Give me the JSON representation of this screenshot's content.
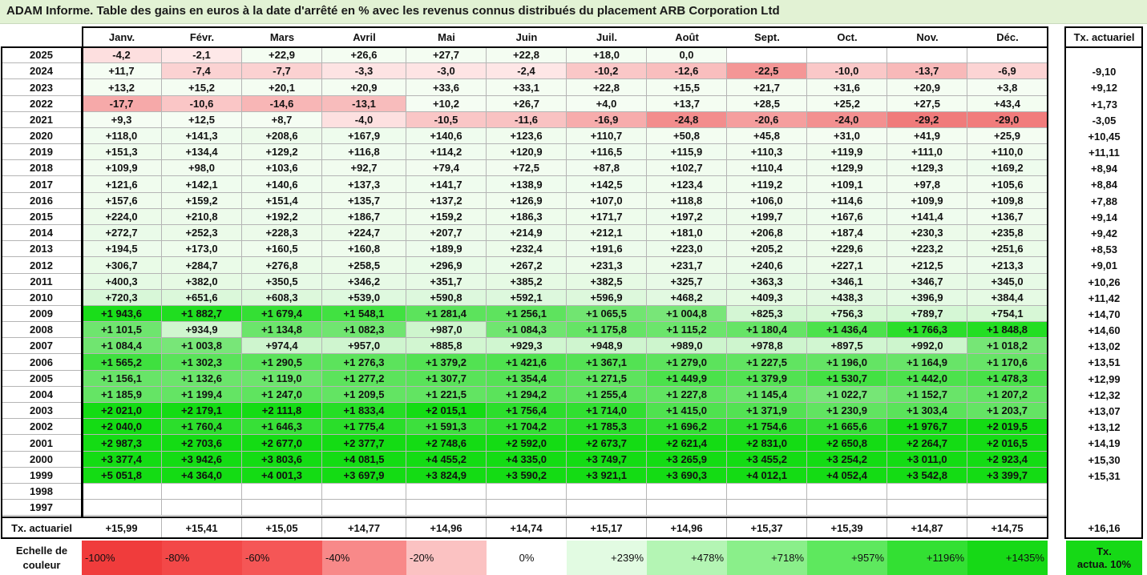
{
  "title": "ADAM Informe. Table des gains en euros à la date d'arrêté en % avec les revenus connus distribués du placement ARB Corporation Ltd",
  "months": [
    "Janv.",
    "Févr.",
    "Mars",
    "Avril",
    "Mai",
    "Juin",
    "Juil.",
    "Août",
    "Sept.",
    "Oct.",
    "Nov.",
    "Déc."
  ],
  "tx_header": "Tx. actuariel",
  "rows": [
    {
      "year": "2025",
      "values": [
        "-4,2",
        "-2,1",
        "+22,9",
        "+26,6",
        "+27,7",
        "+22,8",
        "+18,0",
        "0,0",
        "",
        "",
        "",
        ""
      ],
      "tx": ""
    },
    {
      "year": "2024",
      "values": [
        "+11,7",
        "-7,4",
        "-7,7",
        "-3,3",
        "-3,0",
        "-2,4",
        "-10,2",
        "-12,6",
        "-22,5",
        "-10,0",
        "-13,7",
        "-6,9"
      ],
      "tx": "-9,10"
    },
    {
      "year": "2023",
      "values": [
        "+13,2",
        "+15,2",
        "+20,1",
        "+20,9",
        "+33,6",
        "+33,1",
        "+22,8",
        "+15,5",
        "+21,7",
        "+31,6",
        "+20,9",
        "+3,8"
      ],
      "tx": "+9,12"
    },
    {
      "year": "2022",
      "values": [
        "-17,7",
        "-10,6",
        "-14,6",
        "-13,1",
        "+10,2",
        "+26,7",
        "+4,0",
        "+13,7",
        "+28,5",
        "+25,2",
        "+27,5",
        "+43,4"
      ],
      "tx": "+1,73"
    },
    {
      "year": "2021",
      "values": [
        "+9,3",
        "+12,5",
        "+8,7",
        "-4,0",
        "-10,5",
        "-11,6",
        "-16,9",
        "-24,8",
        "-20,6",
        "-24,0",
        "-29,2",
        "-29,0"
      ],
      "tx": "-3,05"
    },
    {
      "year": "2020",
      "values": [
        "+118,0",
        "+141,3",
        "+208,6",
        "+167,9",
        "+140,6",
        "+123,6",
        "+110,7",
        "+50,8",
        "+45,8",
        "+31,0",
        "+41,9",
        "+25,9"
      ],
      "tx": "+10,45"
    },
    {
      "year": "2019",
      "values": [
        "+151,3",
        "+134,4",
        "+129,2",
        "+116,8",
        "+114,2",
        "+120,9",
        "+116,5",
        "+115,9",
        "+110,3",
        "+119,9",
        "+111,0",
        "+110,0"
      ],
      "tx": "+11,11"
    },
    {
      "year": "2018",
      "values": [
        "+109,9",
        "+98,0",
        "+103,6",
        "+92,7",
        "+79,4",
        "+72,5",
        "+87,8",
        "+102,7",
        "+110,4",
        "+129,9",
        "+129,3",
        "+169,2"
      ],
      "tx": "+8,94"
    },
    {
      "year": "2017",
      "values": [
        "+121,6",
        "+142,1",
        "+140,6",
        "+137,3",
        "+141,7",
        "+138,9",
        "+142,5",
        "+123,4",
        "+119,2",
        "+109,1",
        "+97,8",
        "+105,6"
      ],
      "tx": "+8,84"
    },
    {
      "year": "2016",
      "values": [
        "+157,6",
        "+159,2",
        "+151,4",
        "+135,7",
        "+137,2",
        "+126,9",
        "+107,0",
        "+118,8",
        "+106,0",
        "+114,6",
        "+109,9",
        "+109,8"
      ],
      "tx": "+7,88"
    },
    {
      "year": "2015",
      "values": [
        "+224,0",
        "+210,8",
        "+192,2",
        "+186,7",
        "+159,2",
        "+186,3",
        "+171,7",
        "+197,2",
        "+199,7",
        "+167,6",
        "+141,4",
        "+136,7"
      ],
      "tx": "+9,14"
    },
    {
      "year": "2014",
      "values": [
        "+272,7",
        "+252,3",
        "+228,3",
        "+224,7",
        "+207,7",
        "+214,9",
        "+212,1",
        "+181,0",
        "+206,8",
        "+187,4",
        "+230,3",
        "+235,8"
      ],
      "tx": "+9,42"
    },
    {
      "year": "2013",
      "values": [
        "+194,5",
        "+173,0",
        "+160,5",
        "+160,8",
        "+189,9",
        "+232,4",
        "+191,6",
        "+223,0",
        "+205,2",
        "+229,6",
        "+223,2",
        "+251,6"
      ],
      "tx": "+8,53"
    },
    {
      "year": "2012",
      "values": [
        "+306,7",
        "+284,7",
        "+276,8",
        "+258,5",
        "+296,9",
        "+267,2",
        "+231,3",
        "+231,7",
        "+240,6",
        "+227,1",
        "+212,5",
        "+213,3"
      ],
      "tx": "+9,01"
    },
    {
      "year": "2011",
      "values": [
        "+400,3",
        "+382,0",
        "+350,5",
        "+346,2",
        "+351,7",
        "+385,2",
        "+382,5",
        "+325,7",
        "+363,3",
        "+346,1",
        "+346,7",
        "+345,0"
      ],
      "tx": "+10,26"
    },
    {
      "year": "2010",
      "values": [
        "+720,3",
        "+651,6",
        "+608,3",
        "+539,0",
        "+590,8",
        "+592,1",
        "+596,9",
        "+468,2",
        "+409,3",
        "+438,3",
        "+396,9",
        "+384,4"
      ],
      "tx": "+11,42"
    },
    {
      "year": "2009",
      "values": [
        "+1 943,6",
        "+1 882,7",
        "+1 679,4",
        "+1 548,1",
        "+1 281,4",
        "+1 256,1",
        "+1 065,5",
        "+1 004,8",
        "+825,3",
        "+756,3",
        "+789,7",
        "+754,1"
      ],
      "tx": "+14,70"
    },
    {
      "year": "2008",
      "values": [
        "+1 101,5",
        "+934,9",
        "+1 134,8",
        "+1 082,3",
        "+987,0",
        "+1 084,3",
        "+1 175,8",
        "+1 115,2",
        "+1 180,4",
        "+1 436,4",
        "+1 766,3",
        "+1 848,8"
      ],
      "tx": "+14,60"
    },
    {
      "year": "2007",
      "values": [
        "+1 084,4",
        "+1 003,8",
        "+974,4",
        "+957,0",
        "+885,8",
        "+929,3",
        "+948,9",
        "+989,0",
        "+978,8",
        "+897,5",
        "+992,0",
        "+1 018,2"
      ],
      "tx": "+13,02"
    },
    {
      "year": "2006",
      "values": [
        "+1 565,2",
        "+1 302,3",
        "+1 290,5",
        "+1 276,3",
        "+1 379,2",
        "+1 421,6",
        "+1 367,1",
        "+1 279,0",
        "+1 227,5",
        "+1 196,0",
        "+1 164,9",
        "+1 170,6"
      ],
      "tx": "+13,51"
    },
    {
      "year": "2005",
      "values": [
        "+1 156,1",
        "+1 132,6",
        "+1 119,0",
        "+1 277,2",
        "+1 307,7",
        "+1 354,4",
        "+1 271,5",
        "+1 449,9",
        "+1 379,9",
        "+1 530,7",
        "+1 442,0",
        "+1 478,3"
      ],
      "tx": "+12,99"
    },
    {
      "year": "2004",
      "values": [
        "+1 185,9",
        "+1 199,4",
        "+1 247,0",
        "+1 209,5",
        "+1 221,5",
        "+1 294,2",
        "+1 255,4",
        "+1 227,8",
        "+1 145,4",
        "+1 022,7",
        "+1 152,7",
        "+1 207,2"
      ],
      "tx": "+12,32"
    },
    {
      "year": "2003",
      "values": [
        "+2 021,0",
        "+2 179,1",
        "+2 111,8",
        "+1 833,4",
        "+2 015,1",
        "+1 756,4",
        "+1 714,0",
        "+1 415,0",
        "+1 371,9",
        "+1 230,9",
        "+1 303,4",
        "+1 203,7"
      ],
      "tx": "+13,07"
    },
    {
      "year": "2002",
      "values": [
        "+2 040,0",
        "+1 760,4",
        "+1 646,3",
        "+1 775,4",
        "+1 591,3",
        "+1 704,2",
        "+1 785,3",
        "+1 696,2",
        "+1 754,6",
        "+1 665,6",
        "+1 976,7",
        "+2 019,5"
      ],
      "tx": "+13,12"
    },
    {
      "year": "2001",
      "values": [
        "+2 987,3",
        "+2 703,6",
        "+2 677,0",
        "+2 377,7",
        "+2 748,6",
        "+2 592,0",
        "+2 673,7",
        "+2 621,4",
        "+2 831,0",
        "+2 650,8",
        "+2 264,7",
        "+2 016,5"
      ],
      "tx": "+14,19"
    },
    {
      "year": "2000",
      "values": [
        "+3 377,4",
        "+3 942,6",
        "+3 803,6",
        "+4 081,5",
        "+4 455,2",
        "+4 335,0",
        "+3 749,7",
        "+3 265,9",
        "+3 455,2",
        "+3 254,2",
        "+3 011,0",
        "+2 923,4"
      ],
      "tx": "+15,30"
    },
    {
      "year": "1999",
      "values": [
        "+5 051,8",
        "+4 364,0",
        "+4 001,3",
        "+3 697,9",
        "+3 824,9",
        "+3 590,2",
        "+3 921,1",
        "+3 690,3",
        "+4 012,1",
        "+4 052,4",
        "+3 542,8",
        "+3 399,7"
      ],
      "tx": "+15,31"
    },
    {
      "year": "1998",
      "values": [
        "",
        "",
        "",
        "",
        "",
        "",
        "",
        "",
        "",
        "",
        "",
        ""
      ],
      "tx": ""
    },
    {
      "year": "1997",
      "values": [
        "",
        "",
        "",
        "",
        "",
        "",
        "",
        "",
        "",
        "",
        "",
        ""
      ],
      "tx": ""
    }
  ],
  "tx_row": {
    "label": "Tx. actuariel",
    "values": [
      "+15,99",
      "+15,41",
      "+15,05",
      "+14,77",
      "+14,96",
      "+14,74",
      "+15,17",
      "+14,96",
      "+15,37",
      "+15,39",
      "+14,87",
      "+14,75"
    ],
    "total": "+16,16"
  },
  "scale": {
    "label_line1": "Echelle de",
    "label_line2": "couleur",
    "stops": [
      {
        "label": "-100%",
        "color": "#f03c3c"
      },
      {
        "label": "-80%",
        "color": "#f34848"
      },
      {
        "label": "-60%",
        "color": "#f55656"
      },
      {
        "label": "-40%",
        "color": "#f88989"
      },
      {
        "label": "-20%",
        "color": "#fbc2c2"
      },
      {
        "label": "0%",
        "color": "#ffffff"
      },
      {
        "label": "+239%",
        "color": "#e2fbe2"
      },
      {
        "label": "+478%",
        "color": "#b4f5b4"
      },
      {
        "label": "+718%",
        "color": "#8aef8a"
      },
      {
        "label": "+957%",
        "color": "#5ee85e"
      },
      {
        "label": "+1196%",
        "color": "#33e033"
      },
      {
        "label": "+1435%",
        "color": "#16d916"
      }
    ],
    "tx_line1": "Tx.",
    "tx_line2": "actua. 10%",
    "tx_color": "#16d916"
  }
}
